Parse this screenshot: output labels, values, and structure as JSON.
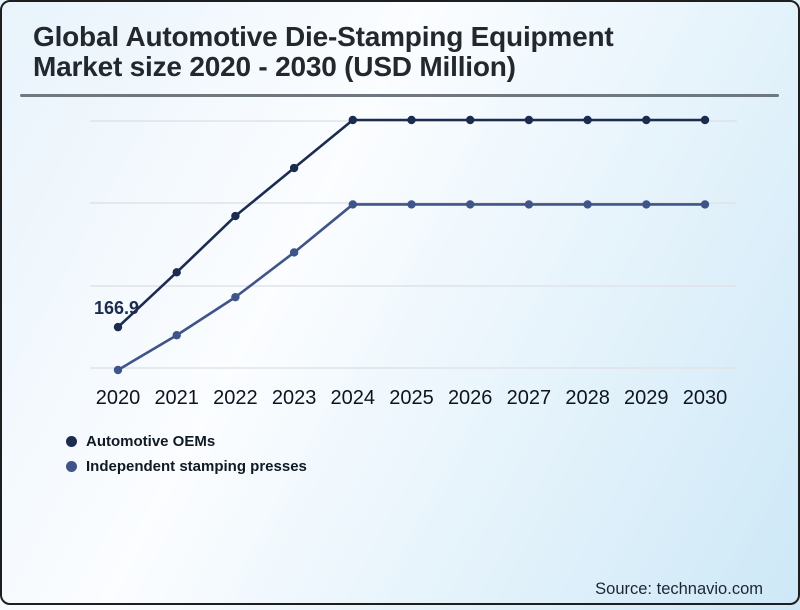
{
  "page": {
    "title_line1": "Global Automotive Die-Stamping Equipment",
    "title_line2": "Market size 2020 - 2030 (USD Million)",
    "source": "Source: technavio.com"
  },
  "colors": {
    "series_oems": "#1c2b50",
    "series_independent": "#3f5488",
    "gridline": "#dfe3e8",
    "title_text": "#23282e",
    "axis_text": "#0d141f",
    "divider": "#6f7880",
    "card_border": "#1e1e1e",
    "background_white": "#fbfdff",
    "background_blue": "#cde8f7"
  },
  "chart_data": {
    "type": "line",
    "title": "Global Automotive Die-Stamping Equipment Market size 2020 - 2030 (USD Million)",
    "xlabel": "",
    "ylabel": "",
    "x": [
      2020,
      2021,
      2022,
      2023,
      2024,
      2025,
      2026,
      2027,
      2028,
      2029,
      2030
    ],
    "series": [
      {
        "name": "Automotive OEMs",
        "color": "#1c2b50",
        "values": [
          166.9,
          200,
          234,
          263,
          292,
          292,
          292,
          292,
          292,
          292,
          292
        ]
      },
      {
        "name": "Independent stamping presses",
        "color": "#3f5488",
        "values": [
          141,
          162,
          185,
          212,
          241,
          241,
          241,
          241,
          241,
          241,
          241
        ]
      }
    ],
    "annotations": [
      {
        "text": "166.9",
        "series": "Automotive OEMs",
        "x": 2020
      }
    ],
    "grid": "horizontal",
    "y_axis_labels_visible": false,
    "legend_position": "bottom-left",
    "markers": "circle"
  }
}
